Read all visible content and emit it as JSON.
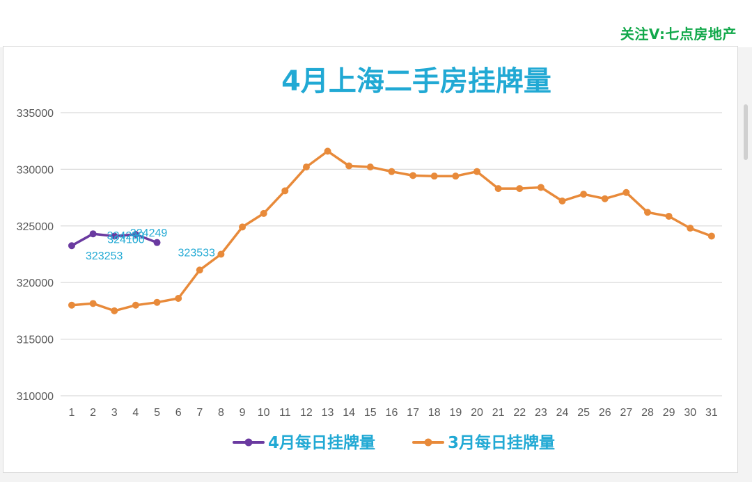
{
  "watermark": "关注V:七点房地产",
  "chart_data": {
    "type": "line",
    "title": "4月上海二手房挂牌量",
    "xlabel": "",
    "ylabel": "",
    "ylim": [
      310000,
      335000
    ],
    "yticks": [
      310000,
      315000,
      320000,
      325000,
      330000,
      335000
    ],
    "x": [
      1,
      2,
      3,
      4,
      5,
      6,
      7,
      8,
      9,
      10,
      11,
      12,
      13,
      14,
      15,
      16,
      17,
      18,
      19,
      20,
      21,
      22,
      23,
      24,
      25,
      26,
      27,
      28,
      29,
      30,
      31
    ],
    "grid": true,
    "legend_position": "bottom",
    "series": [
      {
        "name": "4月每日挂牌量",
        "color": "#6a3aa0",
        "x": [
          1,
          2,
          3,
          4,
          5
        ],
        "values": [
          323253,
          324299,
          324100,
          324249,
          323533
        ],
        "data_labels": [
          "323253",
          "324299",
          "324100",
          "324249",
          "323533"
        ]
      },
      {
        "name": "3月每日挂牌量",
        "color": "#e88a3a",
        "x": [
          1,
          2,
          3,
          4,
          5,
          6,
          7,
          8,
          9,
          10,
          11,
          12,
          13,
          14,
          15,
          16,
          17,
          18,
          19,
          20,
          21,
          22,
          23,
          24,
          25,
          26,
          27,
          28,
          29,
          30,
          31
        ],
        "values": [
          318000,
          318150,
          317500,
          318000,
          318250,
          318600,
          321100,
          322500,
          324900,
          326100,
          328100,
          330200,
          331600,
          330300,
          330200,
          329800,
          329450,
          329400,
          329400,
          329800,
          328300,
          328300,
          328400,
          327200,
          327800,
          327400,
          327950,
          326200,
          325850,
          324800,
          324100
        ]
      }
    ]
  }
}
